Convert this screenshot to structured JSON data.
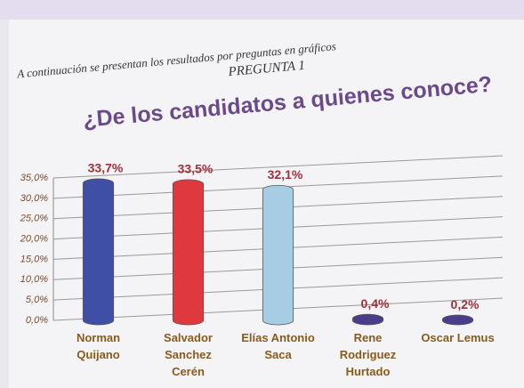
{
  "chart_data": {
    "type": "bar",
    "intro": "A continuación se presentan los resultados por preguntas en gráficos",
    "subtitle": "PREGUNTA 1",
    "title": "¿De los candidatos a quienes conoce?",
    "categories": [
      "Norman Quijano",
      "Salvador Sanchez Cerén",
      "Elías Antonio Saca",
      "Rene Rodriguez Hurtado",
      "Oscar Lemus"
    ],
    "values": [
      33.7,
      33.5,
      32.1,
      0.4,
      0.2
    ],
    "value_labels": [
      "33,7%",
      "33,5%",
      "32,1%",
      "0,4%",
      "0,2%"
    ],
    "colors": [
      "#3f4fa6",
      "#e0383f",
      "#a6cde3",
      "#4b3d8c",
      "#4b3d8c"
    ],
    "ylim": [
      0,
      35
    ],
    "yticks": [
      {
        "value": 0,
        "label": "0,0%"
      },
      {
        "value": 5,
        "label": "5,0%"
      },
      {
        "value": 10,
        "label": "10,0%"
      },
      {
        "value": 15,
        "label": "15,0%"
      },
      {
        "value": 20,
        "label": "20,0%"
      },
      {
        "value": 25,
        "label": "25,0%"
      },
      {
        "value": 30,
        "label": "30,0%"
      },
      {
        "value": 35,
        "label": "35,0%"
      }
    ],
    "grid": true
  }
}
